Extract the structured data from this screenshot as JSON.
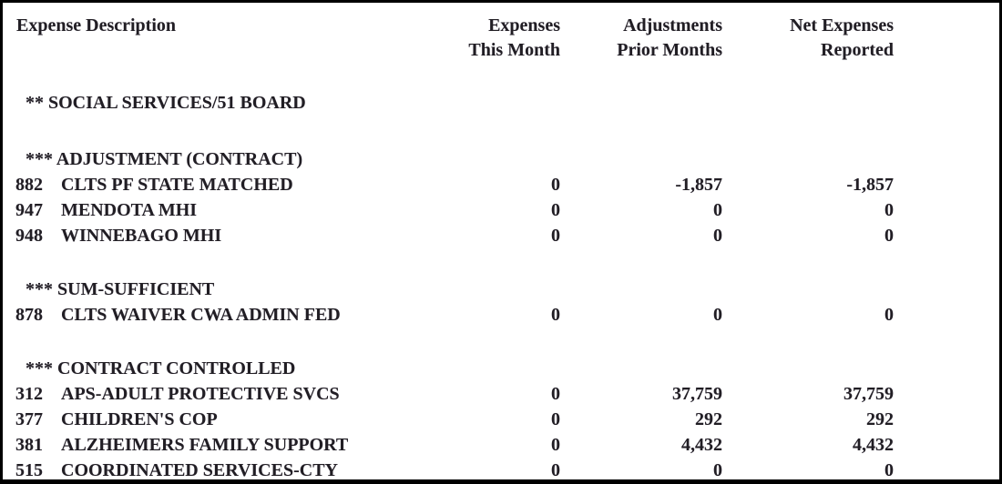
{
  "header": {
    "columns": [
      {
        "line1": "Expense Description",
        "line2": ""
      },
      {
        "line1": "Expenses",
        "line2": "This Month"
      },
      {
        "line1": "Adjustments",
        "line2": "Prior Months"
      },
      {
        "line1": "Net Expenses",
        "line2": "Reported"
      }
    ]
  },
  "group_header": "** SOCIAL SERVICES/51 BOARD",
  "sections": [
    {
      "title": "*** ADJUSTMENT (CONTRACT)",
      "rows": [
        {
          "code": "882",
          "desc": "CLTS PF STATE MATCHED",
          "this_month": "0",
          "prior_months": "-1,857",
          "net": "-1,857"
        },
        {
          "code": "947",
          "desc": "MENDOTA MHI",
          "this_month": "0",
          "prior_months": "0",
          "net": "0"
        },
        {
          "code": "948",
          "desc": "WINNEBAGO MHI",
          "this_month": "0",
          "prior_months": "0",
          "net": "0"
        }
      ]
    },
    {
      "title": "*** SUM-SUFFICIENT",
      "rows": [
        {
          "code": "878",
          "desc": "CLTS WAIVER CWA ADMIN FED",
          "this_month": "0",
          "prior_months": "0",
          "net": "0"
        }
      ]
    },
    {
      "title": "*** CONTRACT CONTROLLED",
      "rows": [
        {
          "code": "312",
          "desc": "APS-ADULT PROTECTIVE SVCS",
          "this_month": "0",
          "prior_months": "37,759",
          "net": "37,759"
        },
        {
          "code": "377",
          "desc": "CHILDREN'S COP",
          "this_month": "0",
          "prior_months": "292",
          "net": "292"
        },
        {
          "code": "381",
          "desc": "ALZHEIMERS FAMILY SUPPORT",
          "this_month": "0",
          "prior_months": "4,432",
          "net": "4,432"
        },
        {
          "code": "515",
          "desc": "COORDINATED SERVICES-CTY",
          "this_month": "0",
          "prior_months": "0",
          "net": "0"
        }
      ]
    }
  ],
  "colors": {
    "text": "#211e24",
    "border": "#000000",
    "background": "#ffffff"
  }
}
